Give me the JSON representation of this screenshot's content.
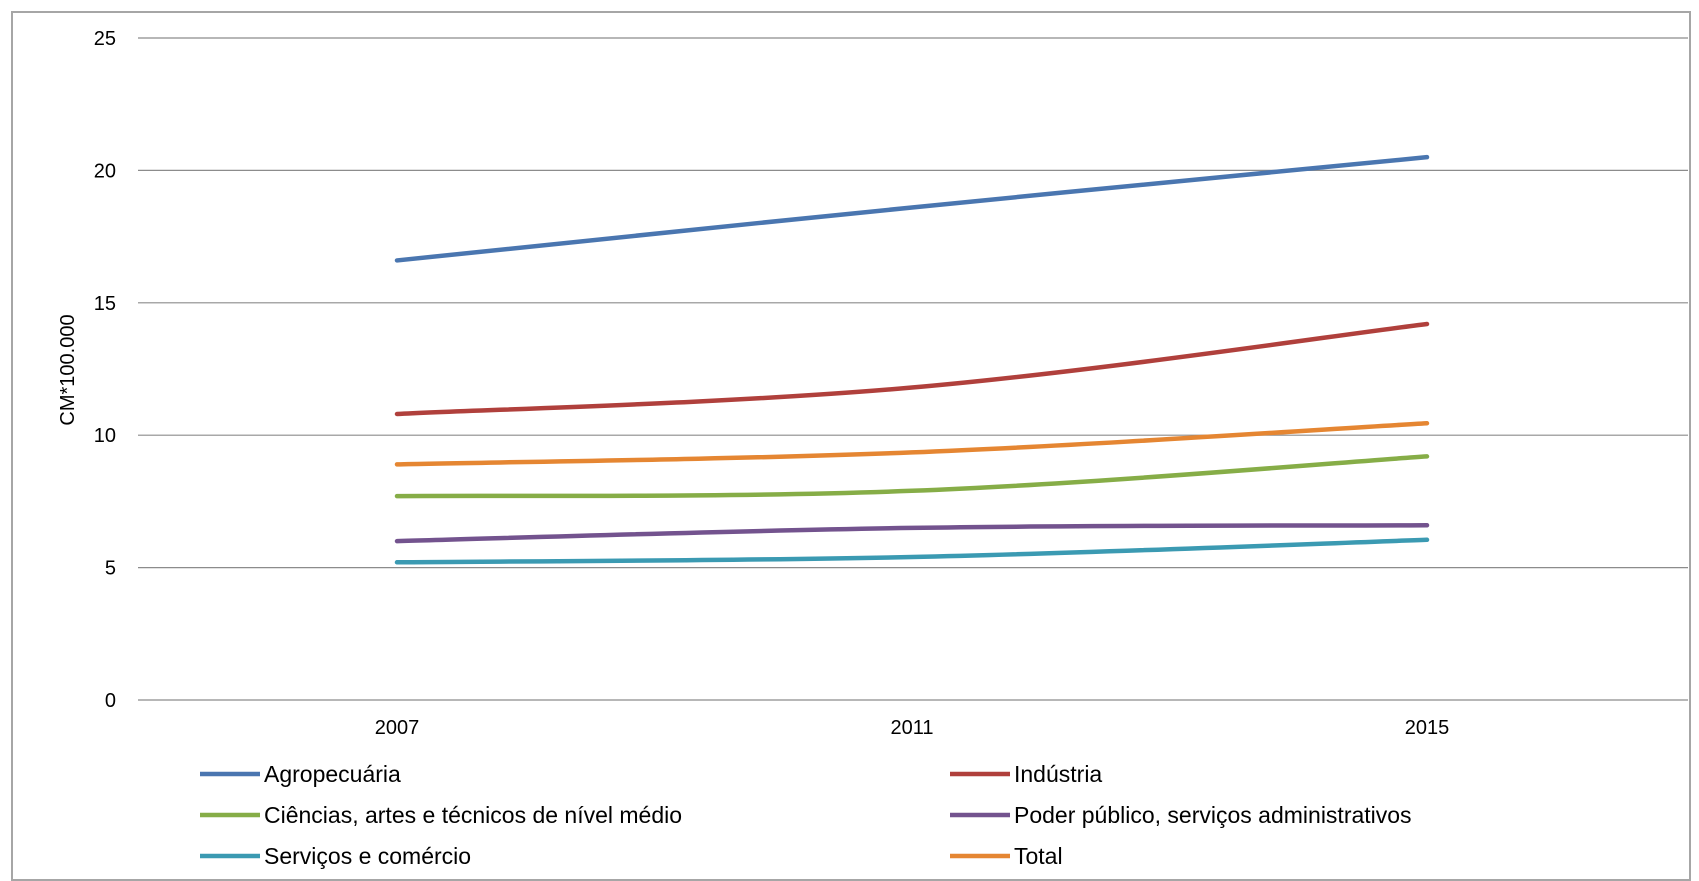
{
  "chart_data": {
    "type": "line",
    "title": "",
    "xlabel": "",
    "ylabel": "CM*100.000",
    "categories": [
      "2007",
      "2011",
      "2015"
    ],
    "ylim": [
      0,
      25
    ],
    "yticks": [
      "0",
      "5",
      "10",
      "15",
      "20",
      "25"
    ],
    "grid": "horizontal",
    "legend_position": "bottom",
    "series": [
      {
        "name": "Agropecuária",
        "color": "#4a76b0",
        "values": [
          16.6,
          18.6,
          20.5
        ]
      },
      {
        "name": "Indústria",
        "color": "#b0403c",
        "values": [
          10.8,
          11.8,
          14.2
        ]
      },
      {
        "name": "Ciências, artes e técnicos de nível médio",
        "color": "#86ad47",
        "values": [
          7.7,
          7.9,
          9.2
        ]
      },
      {
        "name": "Poder público, serviços administrativos",
        "color": "#73538e",
        "values": [
          6.0,
          6.5,
          6.6
        ]
      },
      {
        "name": "Serviços e comércio",
        "color": "#3b9ab2",
        "values": [
          5.2,
          5.4,
          6.05
        ]
      },
      {
        "name": "Total",
        "color": "#e58632",
        "values": [
          8.9,
          9.35,
          10.45
        ]
      }
    ]
  }
}
